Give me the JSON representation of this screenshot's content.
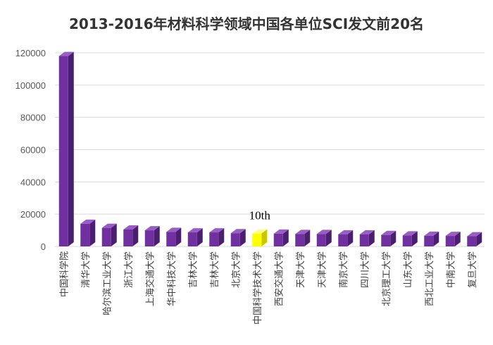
{
  "chart_data": {
    "type": "bar",
    "title": "2013-2016年材料科学领域中国各单位SCI发文前20名",
    "xlabel": "",
    "ylabel": "",
    "ylim": [
      0,
      120000
    ],
    "yticks": [
      0,
      20000,
      40000,
      60000,
      80000,
      100000,
      120000
    ],
    "grid": true,
    "categories": [
      "中国科学院",
      "清华大学",
      "哈尔滨工业大学",
      "浙江大学",
      "上海交通大学",
      "华中科技大学",
      "吉林大学",
      "吉林大学",
      "北京大学",
      "中国科学技术大学",
      "西安交通大学",
      "天津大学",
      "天津大学",
      "南京大学",
      "四川大学",
      "北京理工大学",
      "山东大学",
      "西北工业大学",
      "中南大学",
      "复旦大学"
    ],
    "values": [
      118000,
      14000,
      11500,
      10500,
      10000,
      9000,
      8700,
      8700,
      8200,
      8000,
      7900,
      7700,
      7700,
      7500,
      7500,
      7100,
      6800,
      6600,
      6500,
      6300
    ],
    "highlight_index": 9,
    "annotation": "10th",
    "colors": {
      "bar": "#7030A0",
      "bar_side": "#4B1F6F",
      "bar_top": "#9B5CC8",
      "highlight": "#FFFF00",
      "highlight_side": "#C8C800",
      "highlight_top": "#FFFF80",
      "grid": "#D9D9D9"
    }
  }
}
